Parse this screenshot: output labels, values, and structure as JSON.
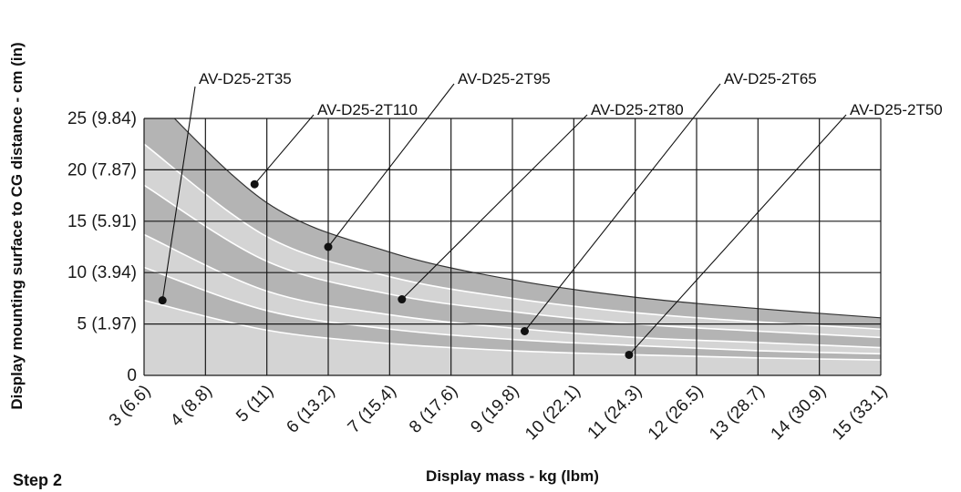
{
  "chart_data": {
    "type": "area",
    "xlabel": "Display mass - kg (lbm)",
    "ylabel": "Display mounting surface to CG distance - cm (in)",
    "xlim": [
      3,
      15
    ],
    "ylim": [
      0,
      25
    ],
    "x_ticks": [
      3,
      4,
      5,
      6,
      7,
      8,
      9,
      10,
      11,
      12,
      13,
      14,
      15
    ],
    "x_tick_labels": [
      "3 (6.6)",
      "4 (8.8)",
      "5 (11)",
      "6 (13.2)",
      "7 (15.4)",
      "8 (17.6)",
      "9 (19.8)",
      "10 (22.1)",
      "11 (24.3)",
      "12 (26.5)",
      "13 (28.7)",
      "14 (30.9)",
      "15 (33.1)"
    ],
    "y_ticks": [
      0,
      5,
      10,
      15,
      20,
      25
    ],
    "y_tick_labels": [
      "0",
      "5 (1.97)",
      "10 (3.94)",
      "15 (5.91)",
      "20 (7.87)",
      "25 (9.84)"
    ],
    "grid": true,
    "colors": {
      "dark_band": "#b4b4b4",
      "light_band": "#d4d4d4",
      "band_border": "#ffffff",
      "grid": "#1a1a1a"
    },
    "series": [
      {
        "name": "AV-D25-2T35",
        "x": [
          3,
          5,
          7,
          9,
          11,
          13,
          15
        ],
        "y": [
          7.3,
          4.4,
          3.1,
          2.4,
          2.0,
          1.7,
          1.5
        ],
        "fill": "light",
        "label_point": [
          3.3,
          7.3
        ]
      },
      {
        "name": "AV-D25-2T50",
        "x": [
          3,
          5,
          7,
          9,
          11,
          13,
          15
        ],
        "y": [
          10.5,
          6.3,
          4.5,
          3.5,
          2.9,
          2.4,
          2.1
        ],
        "fill": "dark",
        "label_point": [
          10.9,
          2.0
        ]
      },
      {
        "name": "AV-D25-2T65",
        "x": [
          3,
          5,
          7,
          9,
          11,
          13,
          15
        ],
        "y": [
          13.7,
          8.2,
          5.9,
          4.6,
          3.7,
          3.2,
          2.7
        ],
        "fill": "light",
        "label_point": [
          9.2,
          4.3
        ]
      },
      {
        "name": "AV-D25-2T80",
        "x": [
          3,
          5,
          7,
          9,
          11,
          13,
          15
        ],
        "y": [
          18.5,
          11.1,
          7.9,
          6.2,
          5.0,
          4.3,
          3.7
        ],
        "fill": "dark",
        "label_point": [
          7.2,
          7.4
        ]
      },
      {
        "name": "AV-D25-2T95",
        "x": [
          3,
          5,
          7,
          9,
          11,
          13,
          15
        ],
        "y": [
          22.5,
          13.5,
          9.6,
          7.5,
          6.1,
          5.2,
          4.5
        ],
        "fill": "light",
        "label_point": [
          6.0,
          12.5
        ]
      },
      {
        "name": "AV-D25-2T110",
        "x": [
          3,
          5,
          7,
          9,
          11,
          13,
          15
        ],
        "y": [
          28.0,
          16.8,
          12.0,
          9.3,
          7.6,
          6.5,
          5.6
        ],
        "fill": "dark",
        "label_point": [
          4.8,
          18.6
        ]
      }
    ]
  },
  "footer": {
    "step_label": "Step 2"
  }
}
